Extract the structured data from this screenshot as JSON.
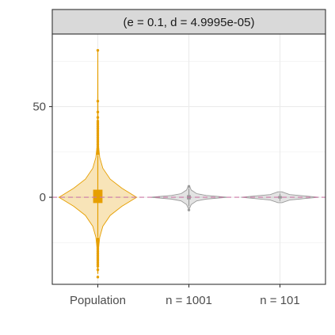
{
  "chart_data": {
    "type": "violin",
    "facet_title": "(e = 0.1, d = 4.9995e-05)",
    "categories": [
      "Population",
      "n = 1001",
      "n = 101"
    ],
    "ylim": [
      -48,
      90
    ],
    "yticks": [
      0,
      50
    ],
    "reference_line": {
      "y": 0,
      "style": "dashed",
      "color": "#cc79a7"
    },
    "grid": true,
    "colors": {
      "Population": "#e69f00",
      "n = 1001": "#999999",
      "n = 101": "#999999"
    },
    "groups": [
      {
        "label": "Population",
        "box": {
          "q1": -3,
          "median": 0,
          "q3": 4,
          "whisker_low": -22,
          "whisker_high": 23
        },
        "violin_profile": [
          [
            -42,
            0.004
          ],
          [
            -35,
            0.01
          ],
          [
            -28,
            0.02
          ],
          [
            -22,
            0.05
          ],
          [
            -16,
            0.13
          ],
          [
            -10,
            0.32
          ],
          [
            -5,
            0.62
          ],
          [
            0,
            1.0
          ],
          [
            5,
            0.62
          ],
          [
            10,
            0.32
          ],
          [
            16,
            0.13
          ],
          [
            22,
            0.05
          ],
          [
            28,
            0.02
          ],
          [
            40,
            0.008
          ],
          [
            55,
            0.004
          ],
          [
            81,
            0.002
          ]
        ],
        "outliers_high": [
          24,
          25,
          26,
          27,
          28,
          29,
          30,
          31,
          32,
          33,
          34,
          35,
          36,
          37,
          38,
          39,
          40,
          41,
          42,
          44,
          47,
          53,
          81
        ],
        "outliers_low": [
          -23,
          -24,
          -25,
          -26,
          -27,
          -28,
          -29,
          -30,
          -31,
          -32,
          -33,
          -34,
          -35,
          -36,
          -37,
          -38,
          -40,
          -44
        ]
      },
      {
        "label": "n = 1001",
        "box": {
          "q1": -1,
          "median": 0,
          "q3": 1,
          "whisker_low": -5,
          "whisker_high": 5
        },
        "violin_profile": [
          [
            -6,
            0.02
          ],
          [
            -4,
            0.06
          ],
          [
            -2,
            0.2
          ],
          [
            -1,
            0.45
          ],
          [
            0,
            1.0
          ],
          [
            1,
            0.45
          ],
          [
            2,
            0.2
          ],
          [
            4,
            0.06
          ],
          [
            6,
            0.02
          ]
        ],
        "outliers_high": [
          6
        ],
        "outliers_low": [
          -7
        ]
      },
      {
        "label": "n = 101",
        "box": {
          "q1": -0.5,
          "median": 0,
          "q3": 0.5,
          "whisker_low": -2,
          "whisker_high": 2
        },
        "violin_profile": [
          [
            -3,
            0.05
          ],
          [
            -1.5,
            0.25
          ],
          [
            0,
            1.0
          ],
          [
            1.5,
            0.25
          ],
          [
            3,
            0.05
          ]
        ],
        "outliers_high": [],
        "outliers_low": []
      }
    ]
  }
}
